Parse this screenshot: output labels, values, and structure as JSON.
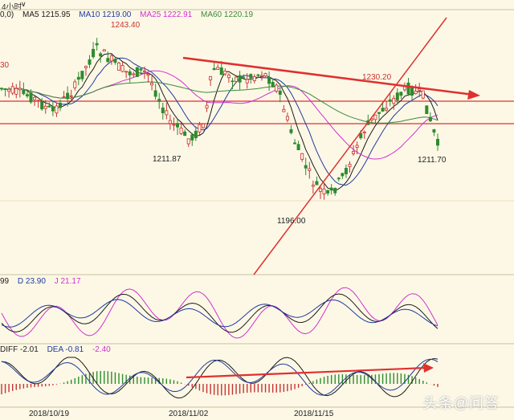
{
  "header": {
    "period_label": "4小时",
    "period_dropdown_icon": "chevron-down-icon"
  },
  "ma_legend": {
    "prefix": "0,0)",
    "ma5": "MA5 1215.95",
    "ma10": "MA10 1219.00",
    "ma25": "MA25 1222.91",
    "ma60": "MA60 1220.19"
  },
  "price_annotations": {
    "high_left": "1243.40",
    "edge_value": "30",
    "low_1": "1211.87",
    "low_2": "1196.00",
    "high_right": "1230.20",
    "low_3": "1211.70"
  },
  "kdj_legend": {
    "k": "99",
    "d": "D 23.90",
    "j": "J 21.17"
  },
  "macd_legend": {
    "diff": "DIFF -2.01",
    "dea": "DEA -0.81",
    "macd": "-2.40"
  },
  "date_axis": [
    "2018/10/19",
    "2018/11/02",
    "2018/11/15"
  ],
  "watermark": "头条@问答",
  "colors": {
    "background": "#fdf8e6",
    "candle_up": "#c83232",
    "candle_down": "#2e8b2e",
    "ma5": "#1a1a1a",
    "ma10": "#1f3aa0",
    "ma25": "#d030d0",
    "ma60": "#3b8a3b",
    "trendline": "#e03030"
  },
  "chart_data": {
    "type": "line",
    "title": "",
    "series_notes": "4-hour gold price candlestick with MA5/MA10/MA25/MA60; annotated highs/lows",
    "annotated_points": [
      {
        "label": "1243.40",
        "y": 1243.4
      },
      {
        "label": "1211.87",
        "y": 1211.87
      },
      {
        "label": "1196.00",
        "y": 1196.0
      },
      {
        "label": "1230.20",
        "y": 1230.2
      },
      {
        "label": "1211.70",
        "y": 1211.7
      }
    ],
    "x_ticks": [
      "2018/10/19",
      "2018/11/02",
      "2018/11/15"
    ]
  }
}
